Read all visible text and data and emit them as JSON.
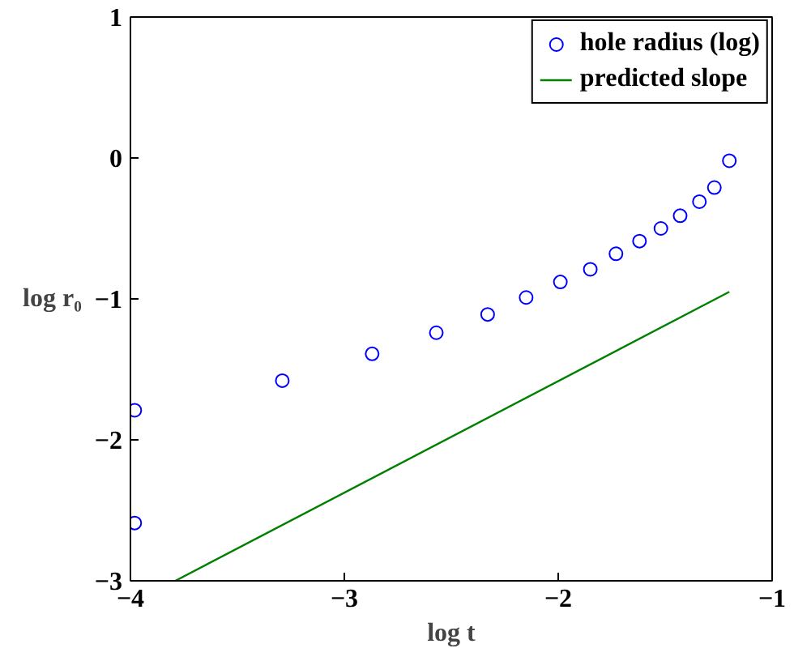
{
  "chart_data": {
    "type": "scatter",
    "xlabel": "log t",
    "ylabel": "log r₀",
    "xlim": [
      -4,
      -1
    ],
    "ylim": [
      -3,
      1
    ],
    "xticks": [
      -4,
      -3,
      -2,
      -1
    ],
    "yticks": [
      -3,
      -2,
      -1,
      0,
      1
    ],
    "grid": false,
    "legend": "top right",
    "series": [
      {
        "name": "hole radius (log)",
        "marker": "circle",
        "color": "#0000ff",
        "x": [
          -3.98,
          -3.98,
          -3.29,
          -2.87,
          -2.57,
          -2.33,
          -2.15,
          -1.99,
          -1.85,
          -1.73,
          -1.62,
          -1.52,
          -1.43,
          -1.34,
          -1.27,
          -1.2
        ],
        "values": [
          -1.79,
          -2.59,
          -1.58,
          -1.39,
          -1.24,
          -1.11,
          -0.99,
          -0.88,
          -0.79,
          -0.68,
          -0.59,
          -0.5,
          -0.41,
          -0.31,
          -0.21,
          -0.02
        ]
      },
      {
        "name": "predicted slope",
        "type": "line",
        "marker": "none",
        "color": "#008000",
        "x": [
          -3.79,
          -1.2
        ],
        "values": [
          -3,
          -0.95
        ]
      }
    ]
  }
}
